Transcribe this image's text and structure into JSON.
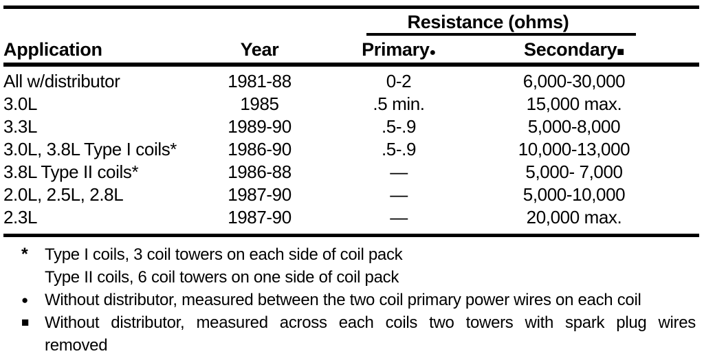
{
  "table": {
    "group_header": "Resistance (ohms)",
    "columns": {
      "application": "Application",
      "year": "Year",
      "primary": "Primary",
      "primary_marker": "●",
      "secondary": "Secondary",
      "secondary_marker": "■"
    },
    "rows": [
      {
        "application": "All w/distributor",
        "year": "1981-88",
        "primary": "0-2",
        "secondary": "6,000-30,000"
      },
      {
        "application": "3.0L",
        "year": "1985",
        "primary": ".5 min.",
        "secondary": "15,000 max."
      },
      {
        "application": "3.3L",
        "year": "1989-90",
        "primary": ".5-.9",
        "secondary": "5,000-8,000"
      },
      {
        "application": "3.0L, 3.8L Type I coils*",
        "year": "1986-90",
        "primary": ".5-.9",
        "secondary": "10,000-13,000"
      },
      {
        "application": "3.8L Type II coils*",
        "year": "1986-88",
        "primary": "—",
        "secondary": "5,000- 7,000"
      },
      {
        "application": "2.0L, 2.5L, 2.8L",
        "year": "1987-90",
        "primary": "—",
        "secondary": "5,000-10,000"
      },
      {
        "application": "2.3L",
        "year": "1987-90",
        "primary": "—",
        "secondary": "20,000 max."
      }
    ]
  },
  "footnotes": {
    "star_marker": "*",
    "star_line1": "Type I coils, 3 coil towers on each side of coil pack",
    "star_line2": "Type II coils, 6 coil towers on one side of coil pack",
    "circle_marker": "●",
    "circle_text": "Without distributor, measured between the two coil primary power wires on each coil",
    "square_marker": "■",
    "square_line1": "Without distributor, measured across each coils two towers with spark plug wires",
    "square_line2": "removed"
  }
}
